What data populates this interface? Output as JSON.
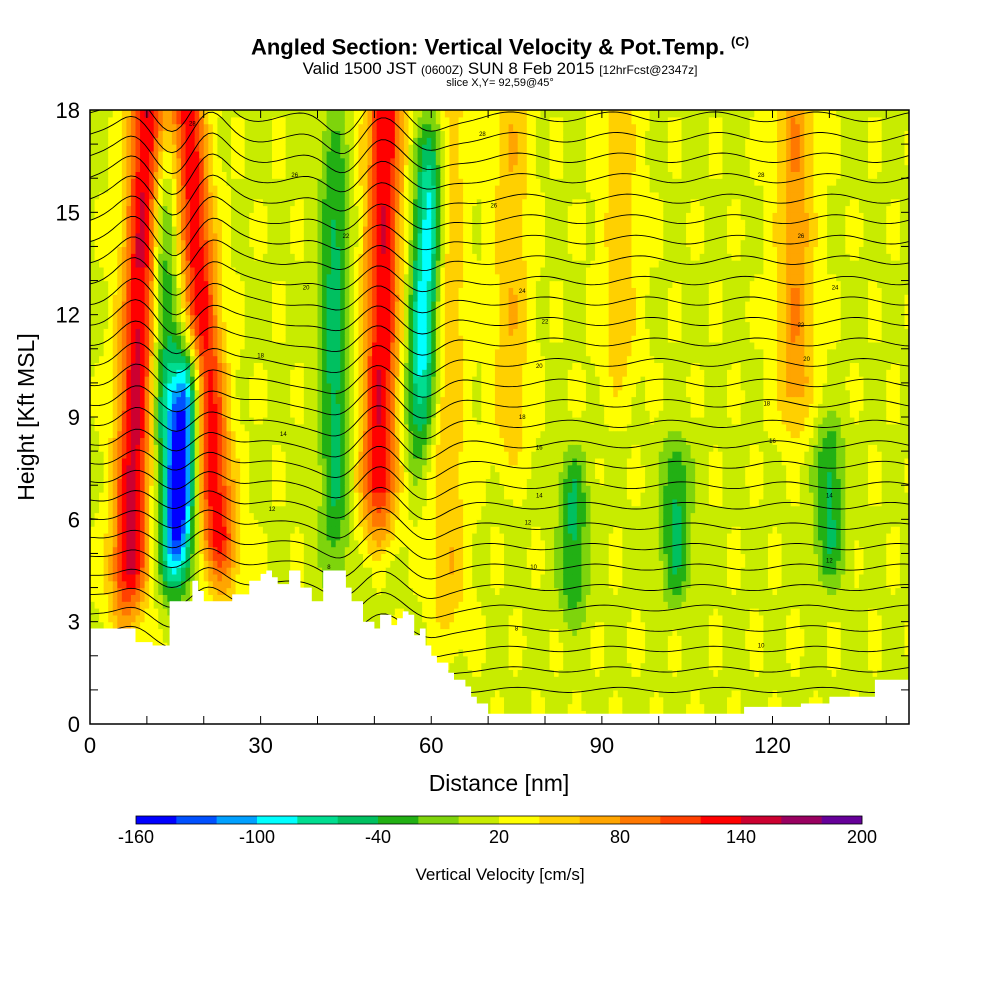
{
  "header": {
    "title": "Angled Section: Vertical Velocity & Pot.Temp.",
    "title_mark": "(C)",
    "valid_prefix": "Valid 1500 JST",
    "valid_utc": "(0600Z)",
    "valid_date": "SUN 8 Feb 2015",
    "forecast": "[12hrFcst@2347z]",
    "slice": "slice X,Y= 92,59@45°"
  },
  "chart_data": {
    "type": "heatmap",
    "title": "Angled Section: Vertical Velocity & Pot.Temp.",
    "xlabel": "Distance [nm]",
    "ylabel": "Height [Kft MSL]",
    "xlim": [
      0,
      144
    ],
    "ylim": [
      0,
      18
    ],
    "x_ticks": [
      0,
      30,
      60,
      90,
      120
    ],
    "y_ticks": [
      0,
      3,
      6,
      9,
      12,
      15,
      18
    ],
    "field": "Vertical Velocity [cm/s]",
    "contour_field": "Potential temperature (C), black contour lines",
    "colorbar": {
      "label": "Vertical Velocity [cm/s]",
      "tick_labels": [
        "-160",
        "-100",
        "-40",
        "20",
        "80",
        "140",
        "200"
      ],
      "tick_values": [
        -160,
        -100,
        -40,
        20,
        80,
        140,
        200
      ],
      "colors": [
        "#0000ff",
        "#0050ff",
        "#00a0ff",
        "#00ffff",
        "#00dd90",
        "#00c060",
        "#22b014",
        "#7ed40c",
        "#c8ec00",
        "#ffff00",
        "#ffd000",
        "#ffa500",
        "#ff7800",
        "#ff4000",
        "#ff0000",
        "#cc0030",
        "#990060",
        "#660099"
      ]
    },
    "updraft_bands": [
      {
        "x_center": 8,
        "x_slope_per_kft": 0.25,
        "z_bottom": 3.5,
        "z_top": 18,
        "w_max": 130
      },
      {
        "x_center": 21,
        "x_slope_per_kft": -0.45,
        "z_bottom": 4.5,
        "z_top": 18,
        "w_max": 115
      },
      {
        "x_center": 51,
        "x_slope_per_kft": 0.1,
        "z_bottom": 6,
        "z_top": 18,
        "w_max": 120
      },
      {
        "x_center": 63,
        "x_slope_per_kft": 0.0,
        "z_bottom": 3,
        "z_top": 18,
        "w_max": 40
      },
      {
        "x_center": 74,
        "x_slope_per_kft": 0.0,
        "z_bottom": 8,
        "z_top": 18,
        "w_max": 40
      },
      {
        "x_center": 93,
        "x_slope_per_kft": 0.0,
        "z_bottom": 10,
        "z_top": 18,
        "w_max": 35
      },
      {
        "x_center": 124,
        "x_slope_per_kft": 0.0,
        "z_bottom": 9,
        "z_top": 18,
        "w_max": 60
      }
    ],
    "downdraft_bands": [
      {
        "x_center": 16,
        "z_center": 7.5,
        "x_slope_per_kft": 0.3,
        "z_half": 3.5,
        "w_min": -160
      },
      {
        "x_center": 59,
        "z_center": 13,
        "x_slope_per_kft": 0.25,
        "z_half": 5,
        "w_min": -100
      },
      {
        "x_center": 43,
        "z_center": 11,
        "x_slope_per_kft": 0.0,
        "z_half": 7,
        "w_min": -50
      },
      {
        "x_center": 13,
        "z_center": 12,
        "x_slope_per_kft": 0.0,
        "z_half": 6,
        "w_min": -50
      },
      {
        "x_center": 85,
        "z_center": 5.5,
        "x_slope_per_kft": 0.0,
        "z_half": 2.5,
        "w_min": -45
      },
      {
        "x_center": 103,
        "z_center": 6,
        "x_slope_per_kft": 0.0,
        "z_half": 2.5,
        "w_min": -45
      },
      {
        "x_center": 130,
        "z_center": 6.5,
        "x_slope_per_kft": 0.0,
        "z_half": 2.5,
        "w_min": -45
      }
    ],
    "terrain": {
      "x": [
        0,
        3,
        8,
        11,
        14,
        18,
        19,
        20,
        22,
        25,
        28,
        30,
        31,
        32,
        33,
        35,
        37,
        39,
        40,
        41,
        43,
        45,
        46,
        48,
        50,
        51,
        53,
        54,
        55,
        56,
        57,
        58,
        59,
        60,
        61,
        62,
        63,
        64,
        66,
        67,
        68,
        70,
        75,
        80,
        90,
        100,
        110,
        115,
        120,
        125,
        130,
        137,
        138,
        144
      ],
      "z": [
        2.8,
        2.8,
        2.4,
        2.3,
        3.6,
        4.2,
        3.9,
        3.6,
        3.6,
        3.8,
        4.2,
        4.4,
        4.5,
        4.3,
        4.1,
        4.5,
        4.0,
        3.6,
        3.6,
        4.5,
        4.5,
        4.0,
        3.6,
        3.0,
        2.8,
        3.2,
        2.9,
        3.1,
        3.3,
        3.2,
        2.6,
        2.8,
        2.3,
        2.0,
        1.8,
        1.8,
        1.5,
        1.3,
        1.1,
        0.8,
        0.6,
        0.3,
        0.3,
        0.3,
        0.3,
        0.3,
        0.3,
        0.5,
        0.5,
        0.6,
        0.8,
        0.8,
        1.3,
        1.3
      ]
    },
    "theta_contours_kft": [
      1.0,
      1.6,
      2.2,
      2.8,
      3.4,
      4.0,
      4.6,
      5.2,
      5.8,
      6.4,
      7.0,
      7.6,
      8.2,
      8.8,
      9.4,
      10.0,
      10.6,
      11.2,
      11.8,
      12.4,
      13.0,
      13.6,
      14.2,
      14.8,
      15.4,
      16.0,
      16.6,
      17.2,
      17.8
    ],
    "contour_value_labels": [
      {
        "x": 18,
        "z": 17.6,
        "text": "28"
      },
      {
        "x": 36,
        "z": 16.1,
        "text": "26"
      },
      {
        "x": 45,
        "z": 14.3,
        "text": "22"
      },
      {
        "x": 38,
        "z": 12.8,
        "text": "20"
      },
      {
        "x": 30,
        "z": 10.8,
        "text": "18"
      },
      {
        "x": 34,
        "z": 8.5,
        "text": "14"
      },
      {
        "x": 32,
        "z": 6.3,
        "text": "12"
      },
      {
        "x": 42,
        "z": 4.6,
        "text": "8"
      },
      {
        "x": 69,
        "z": 17.3,
        "text": "28"
      },
      {
        "x": 71,
        "z": 15.2,
        "text": "26"
      },
      {
        "x": 76,
        "z": 12.7,
        "text": "24"
      },
      {
        "x": 80,
        "z": 11.8,
        "text": "22"
      },
      {
        "x": 79,
        "z": 10.5,
        "text": "20"
      },
      {
        "x": 76,
        "z": 9.0,
        "text": "18"
      },
      {
        "x": 79,
        "z": 8.1,
        "text": "16"
      },
      {
        "x": 79,
        "z": 6.7,
        "text": "14"
      },
      {
        "x": 77,
        "z": 5.9,
        "text": "12"
      },
      {
        "x": 78,
        "z": 4.6,
        "text": "10"
      },
      {
        "x": 75,
        "z": 2.8,
        "text": "8"
      },
      {
        "x": 118,
        "z": 16.1,
        "text": "28"
      },
      {
        "x": 125,
        "z": 14.3,
        "text": "26"
      },
      {
        "x": 131,
        "z": 12.8,
        "text": "24"
      },
      {
        "x": 125,
        "z": 11.7,
        "text": "22"
      },
      {
        "x": 126,
        "z": 10.7,
        "text": "20"
      },
      {
        "x": 119,
        "z": 9.4,
        "text": "18"
      },
      {
        "x": 120,
        "z": 8.3,
        "text": "16"
      },
      {
        "x": 130,
        "z": 6.7,
        "text": "14"
      },
      {
        "x": 130,
        "z": 4.8,
        "text": "12"
      },
      {
        "x": 118,
        "z": 2.3,
        "text": "10"
      }
    ]
  }
}
